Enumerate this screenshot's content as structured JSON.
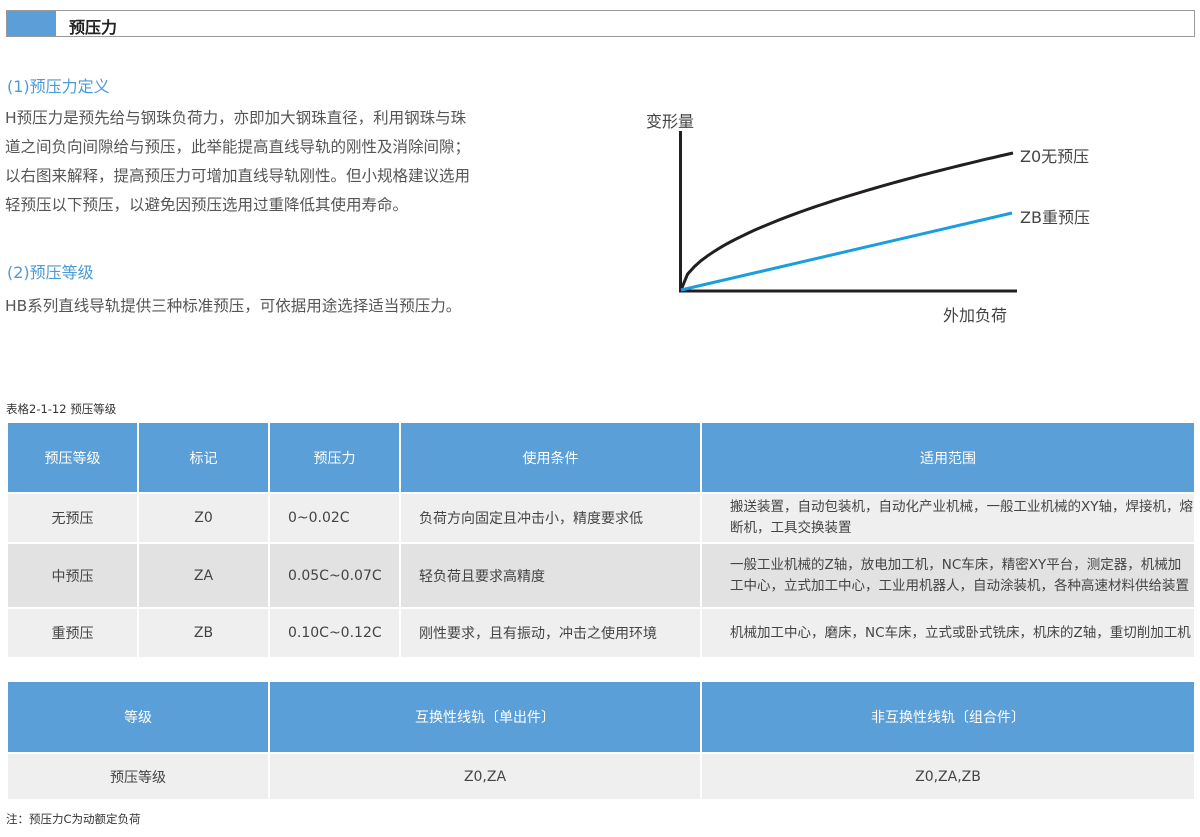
{
  "header": {
    "title": "预压力"
  },
  "section1": {
    "heading": "(1)预压力定义",
    "lines": [
      "H预压力是预先给与钢珠负荷力，亦即加大钢珠直径，利用钢珠与珠",
      "道之间负向间隙给与预压，此举能提高直线导轨的刚性及消除间隙；",
      "以右图来解释，提高预压力可增加直线导轨刚性。但小规格建议选用",
      "轻预压以下预压，以避免因预压选用过重降低其使用寿命。"
    ]
  },
  "section2": {
    "heading": "(2)预压等级",
    "text": "HB系列直线导轨提供三种标准预压，可依据用途选择适当预压力。"
  },
  "diagram": {
    "ylabel": "变形量",
    "xlabel": "外加负荷",
    "series": [
      {
        "name": "Z0无预压",
        "color": "#231f20",
        "shape": "concave"
      },
      {
        "name": "ZB重预压",
        "color": "#1a9ee0",
        "shape": "linear"
      }
    ]
  },
  "table1": {
    "caption": "表格2-1-12  预压等级",
    "headers": [
      "预压等级",
      "标记",
      "预压力",
      "使用条件",
      "适用范围"
    ],
    "rows": [
      [
        "无预压",
        "Z0",
        "0~0.02C",
        "负荷方向固定且冲击小，精度要求低",
        "搬送装置，自动包装机，自动化产业机械，一般工业机械的XY轴，焊接机，熔断机，工具交换装置"
      ],
      [
        "中预压",
        "ZA",
        "0.05C~0.07C",
        "轻负荷且要求高精度",
        "一般工业机械的Z轴，放电加工机，NC车床，精密XY平台，测定器，机械加工中心，立式加工中心，工业用机器人，自动涂装机，各种高速材料供给装置"
      ],
      [
        "重预压",
        "ZB",
        "0.10C~0.12C",
        "刚性要求，且有振动，冲击之使用环境",
        "机械加工中心，磨床，NC车床，立式或卧式铣床，机床的Z轴，重切削加工机"
      ]
    ]
  },
  "table2": {
    "headers": [
      "等级",
      "互换性线轨〔单出件〕",
      "非互换性线轨〔组合件〕"
    ],
    "rows": [
      [
        "预压等级",
        "Z0,ZA",
        "Z0,ZA,ZB"
      ]
    ]
  },
  "note": "注：预压力C为动额定负荷"
}
